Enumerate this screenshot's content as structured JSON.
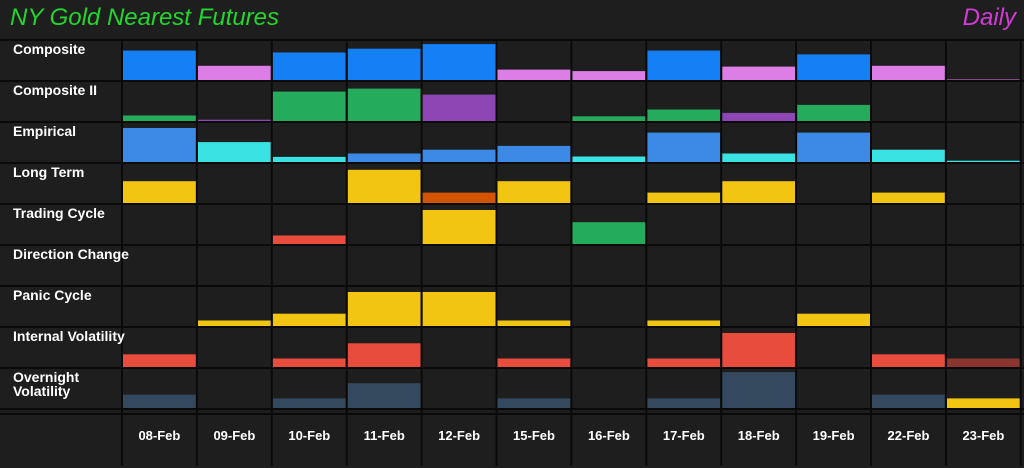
{
  "header": {
    "title": "NY Gold Nearest Futures",
    "period": "Daily",
    "title_color": "#22d62c",
    "period_color": "#d43bd6"
  },
  "colors": {
    "background": "#1e1e1e",
    "grid": "#0a0a0a",
    "blue": "#1580f5",
    "pink": "#dd7ee6",
    "green": "#25ab5c",
    "purple": "#8e46b4",
    "lightblue": "#3d8ae6",
    "cyan": "#3ae2e4",
    "yellow": "#f2c512",
    "orange": "#d35400",
    "red": "#e84c3d",
    "darkred": "#8b3530",
    "slate": "#34495e"
  },
  "chart_data": {
    "type": "heatmap",
    "categories": [
      "08-Feb",
      "09-Feb",
      "10-Feb",
      "11-Feb",
      "12-Feb",
      "15-Feb",
      "16-Feb",
      "17-Feb",
      "18-Feb",
      "19-Feb",
      "22-Feb",
      "23-Feb"
    ],
    "ylim": [
      0,
      1
    ],
    "series": [
      {
        "name": "Composite",
        "values": [
          0.8,
          0.4,
          0.75,
          0.85,
          0.97,
          0.3,
          0.26,
          0.8,
          0.38,
          0.7,
          0.4,
          0.04
        ],
        "colors": [
          "blue",
          "pink",
          "blue",
          "blue",
          "blue",
          "pink",
          "pink",
          "blue",
          "pink",
          "blue",
          "pink",
          "pink"
        ]
      },
      {
        "name": "Composite II",
        "values": [
          0.17,
          0.06,
          0.8,
          0.88,
          0.72,
          0,
          0.15,
          0.33,
          0.24,
          0.45,
          0,
          0
        ],
        "colors": [
          "green",
          "purple",
          "green",
          "green",
          "purple",
          "green",
          "green",
          "green",
          "purple",
          "green",
          "green",
          "green"
        ]
      },
      {
        "name": "Empirical",
        "values": [
          0.92,
          0.55,
          0.16,
          0.25,
          0.35,
          0.45,
          0.17,
          0.8,
          0.25,
          0.8,
          0.35,
          0.06
        ],
        "colors": [
          "lightblue",
          "cyan",
          "cyan",
          "lightblue",
          "lightblue",
          "lightblue",
          "cyan",
          "lightblue",
          "cyan",
          "lightblue",
          "cyan",
          "cyan"
        ]
      },
      {
        "name": "Long Term",
        "values": [
          0.6,
          0,
          0,
          0.9,
          0.3,
          0.6,
          0,
          0.3,
          0.6,
          0,
          0.3,
          0
        ],
        "colors": [
          "yellow",
          "yellow",
          "yellow",
          "yellow",
          "orange",
          "yellow",
          "yellow",
          "yellow",
          "yellow",
          "yellow",
          "yellow",
          "yellow"
        ]
      },
      {
        "name": "Trading Cycle",
        "values": [
          0,
          0,
          0.25,
          0,
          0.92,
          0,
          0.6,
          0,
          0,
          0,
          0,
          0
        ],
        "colors": [
          "red",
          "red",
          "red",
          "yellow",
          "yellow",
          "green",
          "green",
          "red",
          "red",
          "red",
          "red",
          "red"
        ]
      },
      {
        "name": "Direction Change",
        "values": [
          0,
          0,
          0,
          0,
          0,
          0,
          0,
          0,
          0,
          0,
          0,
          0
        ],
        "colors": [
          "yellow",
          "yellow",
          "yellow",
          "yellow",
          "yellow",
          "yellow",
          "yellow",
          "yellow",
          "yellow",
          "yellow",
          "yellow",
          "yellow"
        ]
      },
      {
        "name": "Panic Cycle",
        "values": [
          0,
          0.17,
          0.35,
          0.92,
          0.92,
          0.17,
          0,
          0.17,
          0,
          0.35,
          0,
          0
        ],
        "colors": [
          "yellow",
          "yellow",
          "yellow",
          "yellow",
          "yellow",
          "yellow",
          "yellow",
          "yellow",
          "yellow",
          "yellow",
          "yellow",
          "yellow"
        ]
      },
      {
        "name": "Internal Volatility",
        "values": [
          0.36,
          0,
          0.25,
          0.65,
          0,
          0.25,
          0,
          0.25,
          0.92,
          0,
          0.36,
          0.25
        ],
        "colors": [
          "red",
          "red",
          "red",
          "red",
          "red",
          "red",
          "red",
          "red",
          "red",
          "red",
          "red",
          "darkred"
        ]
      },
      {
        "name": "Overnight\nVolatility",
        "values": [
          0.38,
          0,
          0.28,
          0.68,
          0,
          0.28,
          0,
          0.28,
          0.97,
          0,
          0.38,
          0.28
        ],
        "colors": [
          "slate",
          "slate",
          "slate",
          "slate",
          "slate",
          "slate",
          "slate",
          "slate",
          "slate",
          "slate",
          "slate",
          "yellow"
        ]
      }
    ]
  }
}
